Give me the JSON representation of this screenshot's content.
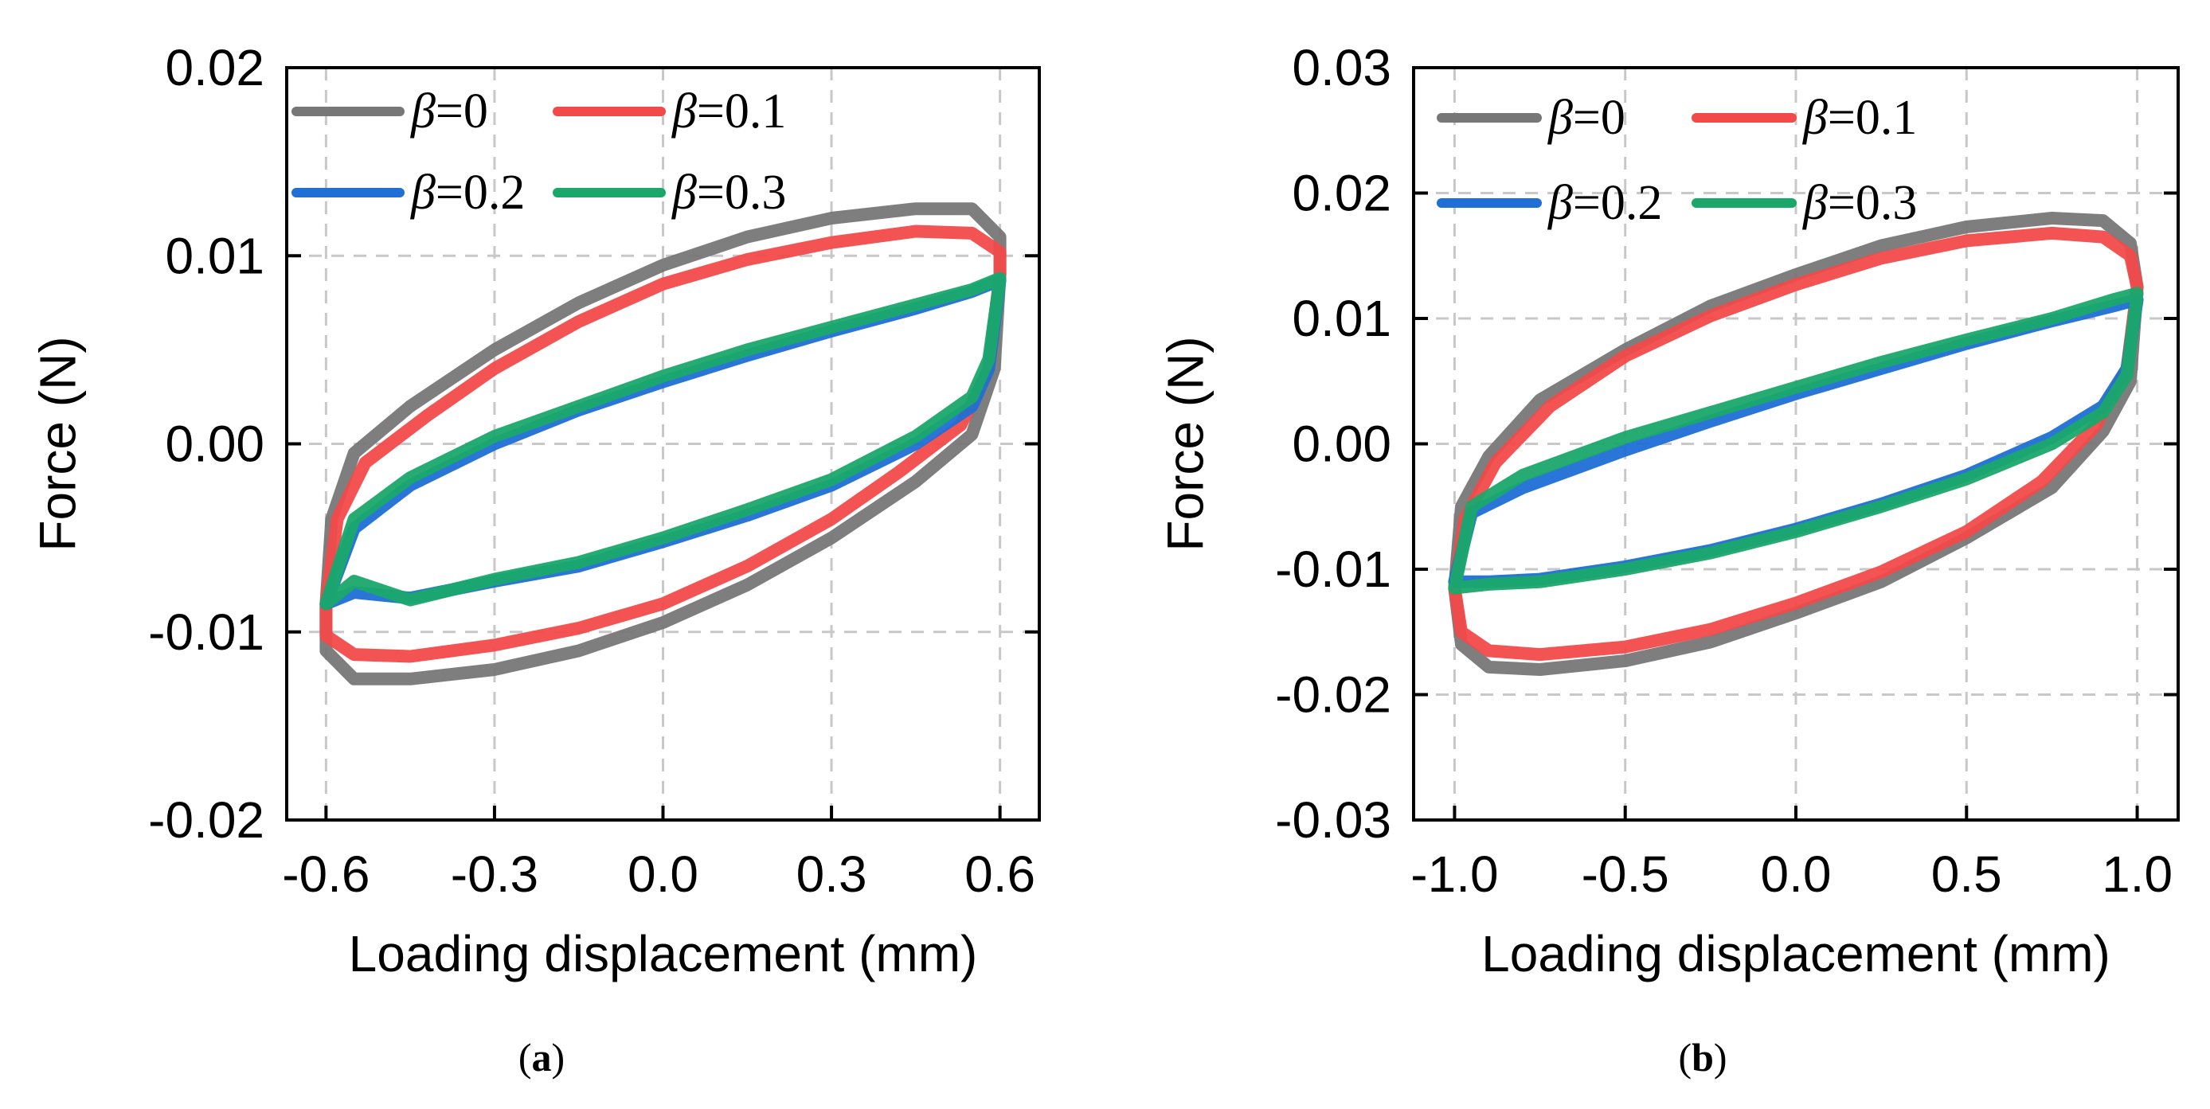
{
  "chart_data": [
    {
      "type": "line",
      "panel_label": "a",
      "xlabel": "Loading displacement (mm)",
      "ylabel": "Force (N)",
      "xlim": [
        -0.67,
        0.67
      ],
      "ylim": [
        -0.02,
        0.02
      ],
      "xticks": [
        -0.6,
        -0.3,
        0.0,
        0.3,
        0.6
      ],
      "xtick_labels": [
        "-0.6",
        "-0.3",
        "0.0",
        "0.3",
        "0.6"
      ],
      "yticks": [
        -0.02,
        -0.01,
        0.0,
        0.01,
        0.02
      ],
      "ytick_labels": [
        "-0.02",
        "-0.01",
        "0.00",
        "0.01",
        "0.02"
      ],
      "grid": true,
      "legend_position": "top-left",
      "series": [
        {
          "name": "β=0",
          "beta": "0",
          "color": "#777777",
          "upper": [
            [
              -0.6,
              -0.0085
            ],
            [
              -0.59,
              -0.004
            ],
            [
              -0.55,
              -0.0005
            ],
            [
              -0.45,
              0.002
            ],
            [
              -0.3,
              0.005
            ],
            [
              -0.15,
              0.0075
            ],
            [
              0.0,
              0.0095
            ],
            [
              0.15,
              0.011
            ],
            [
              0.3,
              0.012
            ],
            [
              0.45,
              0.0125
            ],
            [
              0.55,
              0.0125
            ],
            [
              0.6,
              0.011
            ],
            [
              0.6,
              0.009
            ]
          ],
          "lower": [
            [
              0.6,
              0.009
            ],
            [
              0.59,
              0.004
            ],
            [
              0.55,
              0.0005
            ],
            [
              0.45,
              -0.002
            ],
            [
              0.3,
              -0.005
            ],
            [
              0.15,
              -0.0075
            ],
            [
              0.0,
              -0.0095
            ],
            [
              -0.15,
              -0.011
            ],
            [
              -0.3,
              -0.012
            ],
            [
              -0.45,
              -0.0125
            ],
            [
              -0.55,
              -0.0125
            ],
            [
              -0.6,
              -0.011
            ],
            [
              -0.6,
              -0.0085
            ]
          ]
        },
        {
          "name": "β=0.1",
          "beta": "0.1",
          "color": "#f24a49",
          "upper": [
            [
              -0.6,
              -0.0085
            ],
            [
              -0.58,
              -0.004
            ],
            [
              -0.53,
              -0.001
            ],
            [
              -0.42,
              0.0015
            ],
            [
              -0.3,
              0.004
            ],
            [
              -0.15,
              0.0065
            ],
            [
              0.0,
              0.0085
            ],
            [
              0.15,
              0.0098
            ],
            [
              0.3,
              0.0107
            ],
            [
              0.45,
              0.0113
            ],
            [
              0.55,
              0.0112
            ],
            [
              0.6,
              0.0102
            ],
            [
              0.6,
              0.009
            ]
          ],
          "lower": [
            [
              0.6,
              0.009
            ],
            [
              0.58,
              0.004
            ],
            [
              0.53,
              0.001
            ],
            [
              0.42,
              -0.0015
            ],
            [
              0.3,
              -0.004
            ],
            [
              0.15,
              -0.0065
            ],
            [
              0.0,
              -0.0085
            ],
            [
              -0.15,
              -0.0098
            ],
            [
              -0.3,
              -0.0107
            ],
            [
              -0.45,
              -0.0113
            ],
            [
              -0.55,
              -0.0112
            ],
            [
              -0.6,
              -0.0102
            ],
            [
              -0.6,
              -0.0085
            ]
          ]
        },
        {
          "name": "β=0.2",
          "beta": "0.2",
          "color": "#1f6fd6",
          "upper": [
            [
              -0.6,
              -0.0085
            ],
            [
              -0.55,
              -0.0045
            ],
            [
              -0.45,
              -0.0022
            ],
            [
              -0.3,
              0.0
            ],
            [
              -0.15,
              0.0018
            ],
            [
              0.0,
              0.0033
            ],
            [
              0.15,
              0.0047
            ],
            [
              0.3,
              0.006
            ],
            [
              0.45,
              0.0072
            ],
            [
              0.55,
              0.0081
            ],
            [
              0.6,
              0.0087
            ]
          ],
          "lower": [
            [
              0.6,
              0.0087
            ],
            [
              0.58,
              0.004
            ],
            [
              0.55,
              0.002
            ],
            [
              0.45,
              0.0
            ],
            [
              0.3,
              -0.0022
            ],
            [
              0.15,
              -0.0038
            ],
            [
              0.0,
              -0.0052
            ],
            [
              -0.15,
              -0.0065
            ],
            [
              -0.3,
              -0.0073
            ],
            [
              -0.45,
              -0.0082
            ],
            [
              -0.55,
              -0.0079
            ],
            [
              -0.6,
              -0.0085
            ]
          ]
        },
        {
          "name": "β=0.3",
          "beta": "0.3",
          "color": "#1aa86a",
          "upper": [
            [
              -0.6,
              -0.0085
            ],
            [
              -0.55,
              -0.004
            ],
            [
              -0.45,
              -0.0018
            ],
            [
              -0.3,
              0.0004
            ],
            [
              -0.15,
              0.002
            ],
            [
              0.0,
              0.0036
            ],
            [
              0.15,
              0.005
            ],
            [
              0.3,
              0.0062
            ],
            [
              0.45,
              0.0074
            ],
            [
              0.55,
              0.0082
            ],
            [
              0.6,
              0.0088
            ]
          ],
          "lower": [
            [
              0.6,
              0.0088
            ],
            [
              0.58,
              0.0045
            ],
            [
              0.55,
              0.0025
            ],
            [
              0.45,
              0.0004
            ],
            [
              0.3,
              -0.0019
            ],
            [
              0.15,
              -0.0035
            ],
            [
              0.0,
              -0.005
            ],
            [
              -0.15,
              -0.0063
            ],
            [
              -0.3,
              -0.0072
            ],
            [
              -0.45,
              -0.0083
            ],
            [
              -0.55,
              -0.0073
            ],
            [
              -0.6,
              -0.0085
            ]
          ]
        }
      ]
    },
    {
      "type": "line",
      "panel_label": "b",
      "xlabel": "Loading displacement (mm)",
      "ylabel": "Force (N)",
      "xlim": [
        -1.12,
        1.12
      ],
      "ylim": [
        -0.03,
        0.03
      ],
      "xticks": [
        -1.0,
        -0.5,
        0.0,
        0.5,
        1.0
      ],
      "xtick_labels": [
        "-1.0",
        "-0.5",
        "0.0",
        "0.5",
        "1.0"
      ],
      "yticks": [
        -0.03,
        -0.02,
        -0.01,
        0.0,
        0.01,
        0.02,
        0.03
      ],
      "ytick_labels": [
        "-0.03",
        "-0.02",
        "-0.01",
        "0.00",
        "0.01",
        "0.02",
        "0.03"
      ],
      "grid": true,
      "legend_position": "top-left",
      "series": [
        {
          "name": "β=0",
          "beta": "0",
          "color": "#777777",
          "upper": [
            [
              -1.0,
              -0.0115
            ],
            [
              -0.98,
              -0.005
            ],
            [
              -0.9,
              -0.001
            ],
            [
              -0.75,
              0.0035
            ],
            [
              -0.5,
              0.0075
            ],
            [
              -0.25,
              0.011
            ],
            [
              0.0,
              0.0135
            ],
            [
              0.25,
              0.0158
            ],
            [
              0.5,
              0.0173
            ],
            [
              0.75,
              0.018
            ],
            [
              0.9,
              0.0178
            ],
            [
              0.98,
              0.016
            ],
            [
              1.0,
              0.0125
            ]
          ],
          "lower": [
            [
              1.0,
              0.0125
            ],
            [
              0.98,
              0.005
            ],
            [
              0.9,
              0.001
            ],
            [
              0.75,
              -0.0035
            ],
            [
              0.5,
              -0.0075
            ],
            [
              0.25,
              -0.011
            ],
            [
              0.0,
              -0.0135
            ],
            [
              -0.25,
              -0.0158
            ],
            [
              -0.5,
              -0.0173
            ],
            [
              -0.75,
              -0.018
            ],
            [
              -0.9,
              -0.0178
            ],
            [
              -0.98,
              -0.016
            ],
            [
              -1.0,
              -0.0115
            ]
          ]
        },
        {
          "name": "β=0.1",
          "beta": "0.1",
          "color": "#f24a49",
          "upper": [
            [
              -1.0,
              -0.0115
            ],
            [
              -0.97,
              -0.006
            ],
            [
              -0.88,
              -0.0015
            ],
            [
              -0.72,
              0.003
            ],
            [
              -0.5,
              0.007
            ],
            [
              -0.25,
              0.0102
            ],
            [
              0.0,
              0.0127
            ],
            [
              0.25,
              0.0148
            ],
            [
              0.5,
              0.0162
            ],
            [
              0.75,
              0.0168
            ],
            [
              0.9,
              0.0165
            ],
            [
              0.98,
              0.015
            ],
            [
              1.0,
              0.0125
            ]
          ],
          "lower": [
            [
              1.0,
              0.0125
            ],
            [
              0.97,
              0.006
            ],
            [
              0.88,
              0.0015
            ],
            [
              0.72,
              -0.003
            ],
            [
              0.5,
              -0.007
            ],
            [
              0.25,
              -0.0102
            ],
            [
              0.0,
              -0.0127
            ],
            [
              -0.25,
              -0.0148
            ],
            [
              -0.5,
              -0.0162
            ],
            [
              -0.75,
              -0.0168
            ],
            [
              -0.9,
              -0.0165
            ],
            [
              -0.98,
              -0.015
            ],
            [
              -1.0,
              -0.0115
            ]
          ]
        },
        {
          "name": "β=0.2",
          "beta": "0.2",
          "color": "#1f6fd6",
          "upper": [
            [
              -1.0,
              -0.011
            ],
            [
              -0.95,
              -0.0055
            ],
            [
              -0.8,
              -0.0035
            ],
            [
              -0.5,
              -0.0005
            ],
            [
              -0.25,
              0.0018
            ],
            [
              0.0,
              0.004
            ],
            [
              0.25,
              0.006
            ],
            [
              0.5,
              0.008
            ],
            [
              0.75,
              0.0098
            ],
            [
              0.93,
              0.011
            ],
            [
              1.0,
              0.0115
            ]
          ],
          "lower": [
            [
              1.0,
              0.0115
            ],
            [
              0.97,
              0.006
            ],
            [
              0.9,
              0.003
            ],
            [
              0.75,
              0.0005
            ],
            [
              0.5,
              -0.0025
            ],
            [
              0.25,
              -0.0048
            ],
            [
              0.0,
              -0.0068
            ],
            [
              -0.25,
              -0.0085
            ],
            [
              -0.5,
              -0.0098
            ],
            [
              -0.75,
              -0.0108
            ],
            [
              -0.9,
              -0.011
            ],
            [
              -1.0,
              -0.011
            ]
          ]
        },
        {
          "name": "β=0.3",
          "beta": "0.3",
          "color": "#1aa86a",
          "upper": [
            [
              -1.0,
              -0.0115
            ],
            [
              -0.95,
              -0.005
            ],
            [
              -0.8,
              -0.0025
            ],
            [
              -0.5,
              0.0005
            ],
            [
              -0.25,
              0.0025
            ],
            [
              0.0,
              0.0045
            ],
            [
              0.25,
              0.0065
            ],
            [
              0.5,
              0.0083
            ],
            [
              0.75,
              0.01
            ],
            [
              0.93,
              0.0115
            ],
            [
              1.0,
              0.012
            ]
          ],
          "lower": [
            [
              1.0,
              0.012
            ],
            [
              0.97,
              0.0055
            ],
            [
              0.9,
              0.0025
            ],
            [
              0.75,
              0.0
            ],
            [
              0.5,
              -0.0028
            ],
            [
              0.25,
              -0.005
            ],
            [
              0.0,
              -0.007
            ],
            [
              -0.25,
              -0.0087
            ],
            [
              -0.5,
              -0.01
            ],
            [
              -0.75,
              -0.011
            ],
            [
              -0.9,
              -0.0112
            ],
            [
              -1.0,
              -0.0115
            ]
          ]
        }
      ]
    }
  ]
}
